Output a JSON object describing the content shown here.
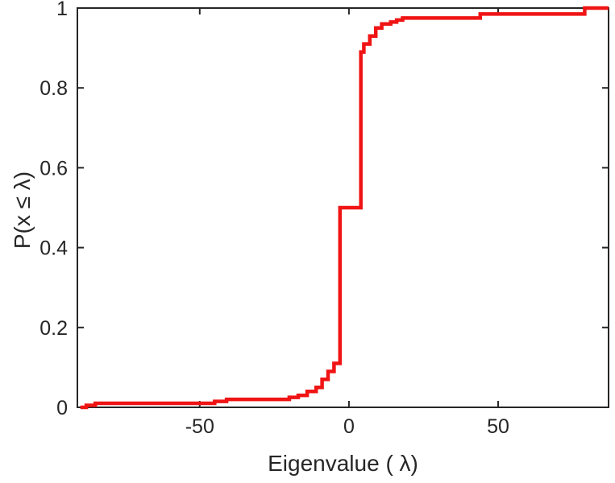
{
  "figure": {
    "background": "#ffffff"
  },
  "chart_data": {
    "type": "line",
    "subtype": "ecdf-step",
    "title": "",
    "xlabel": "Eigenvalue (  λ)",
    "ylabel": "P(x ≤ λ)",
    "xlim": [
      -91,
      87
    ],
    "ylim": [
      0,
      1
    ],
    "xticks": [
      -50,
      0,
      50
    ],
    "xtick_labels": [
      "-50",
      "0",
      "50"
    ],
    "yticks": [
      0,
      0.2,
      0.4,
      0.6,
      0.8,
      1
    ],
    "ytick_labels": [
      "0",
      "0.2",
      "0.4",
      "0.6",
      "0.8",
      "1"
    ],
    "x_start": -90,
    "x_end": 87,
    "steps": [
      [
        -88,
        0.005
      ],
      [
        -85,
        0.01
      ],
      [
        -45,
        0.015
      ],
      [
        -41,
        0.02
      ],
      [
        -20,
        0.025
      ],
      [
        -17,
        0.03
      ],
      [
        -14,
        0.04
      ],
      [
        -11,
        0.05
      ],
      [
        -9,
        0.07
      ],
      [
        -7,
        0.09
      ],
      [
        -5,
        0.11
      ],
      [
        -3,
        0.5
      ],
      [
        4,
        0.89
      ],
      [
        5,
        0.91
      ],
      [
        7,
        0.93
      ],
      [
        9,
        0.95
      ],
      [
        11,
        0.96
      ],
      [
        14,
        0.965
      ],
      [
        16,
        0.97
      ],
      [
        18,
        0.975
      ],
      [
        44,
        0.985
      ],
      [
        79,
        1.0
      ]
    ],
    "line_color": "#f01414",
    "line_width": 4.5,
    "axis_color": "#262626",
    "grid": false,
    "legend": null,
    "box": true,
    "tick_dir": "in"
  }
}
